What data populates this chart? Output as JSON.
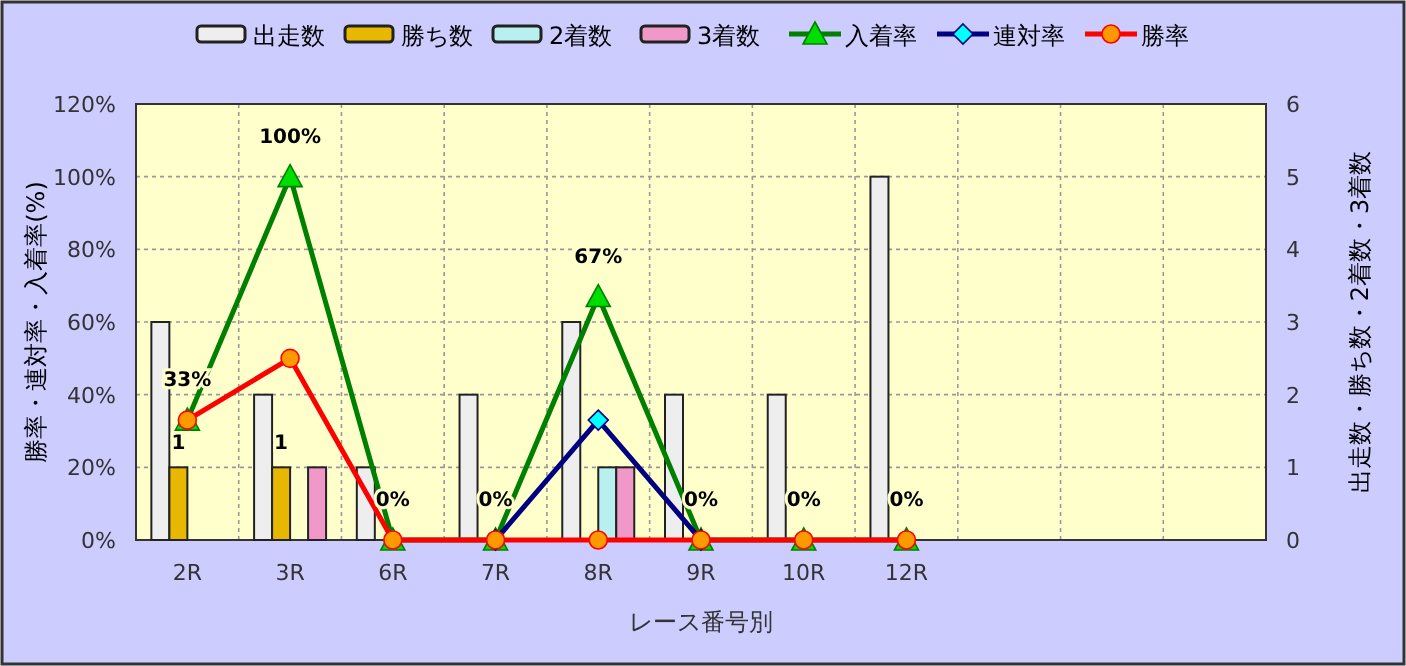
{
  "chart_data": {
    "type": "bar",
    "xlabel": "レース番号別",
    "ylabel": "勝率・連対率・入着率(%)",
    "y2label": "出走数・勝ち数・2着数・3着数",
    "categories": [
      "2R",
      "3R",
      "6R",
      "7R",
      "8R",
      "9R",
      "10R",
      "12R",
      null,
      null,
      null
    ],
    "series": [
      {
        "name": "出走数",
        "axis": "y2",
        "color": "#eeeeee",
        "values": [
          3,
          2,
          1,
          2,
          3,
          2,
          2,
          5,
          null,
          null,
          null
        ]
      },
      {
        "name": "勝ち数",
        "axis": "y2",
        "color": "#e8b800",
        "values": [
          1,
          1,
          0,
          0,
          0,
          0,
          0,
          0,
          null,
          null,
          null
        ],
        "value_labels": [
          "1",
          "1",
          null,
          null,
          null,
          null,
          null,
          null,
          null,
          null,
          null
        ]
      },
      {
        "name": "2着数",
        "axis": "y2",
        "color": "#b8f0f0",
        "values": [
          0,
          0,
          0,
          0,
          1,
          0,
          0,
          0,
          null,
          null,
          null
        ]
      },
      {
        "name": "3着数",
        "axis": "y2",
        "color": "#f098c8",
        "values": [
          0,
          1,
          0,
          0,
          1,
          0,
          0,
          0,
          null,
          null,
          null
        ]
      },
      {
        "name": "入着率",
        "type": "line",
        "axis": "y",
        "color": "#008000",
        "marker": "triangle",
        "values": [
          33,
          100,
          0,
          0,
          67,
          0,
          0,
          0,
          null,
          null,
          null
        ],
        "value_labels": [
          "33%",
          "100%",
          "0%",
          "0%",
          "67%",
          "0%",
          "0%",
          "0%",
          null,
          null,
          null
        ]
      },
      {
        "name": "連対率",
        "type": "line",
        "axis": "y",
        "color": "#000080",
        "marker": "diamond",
        "values": [
          null,
          null,
          null,
          0,
          33,
          0,
          null,
          null,
          null,
          null,
          null
        ]
      },
      {
        "name": "勝率",
        "type": "line",
        "axis": "y",
        "color": "#ff0000",
        "marker": "circle",
        "values": [
          33,
          50,
          0,
          0,
          0,
          0,
          0,
          0,
          null,
          null,
          null
        ]
      }
    ],
    "ylim": [
      0,
      120
    ],
    "yticks": [
      {
        "value": 0,
        "label": "0%"
      },
      {
        "value": 20,
        "label": "20%"
      },
      {
        "value": 40,
        "label": "40%"
      },
      {
        "value": 60,
        "label": "60%"
      },
      {
        "value": 80,
        "label": "80%"
      },
      {
        "value": 100,
        "label": "100%"
      },
      {
        "value": 120,
        "label": "120%"
      }
    ],
    "y2lim": [
      0,
      6
    ],
    "y2ticks": [
      0,
      1,
      2,
      3,
      4,
      5,
      6
    ],
    "grid": true,
    "legend": "top"
  }
}
